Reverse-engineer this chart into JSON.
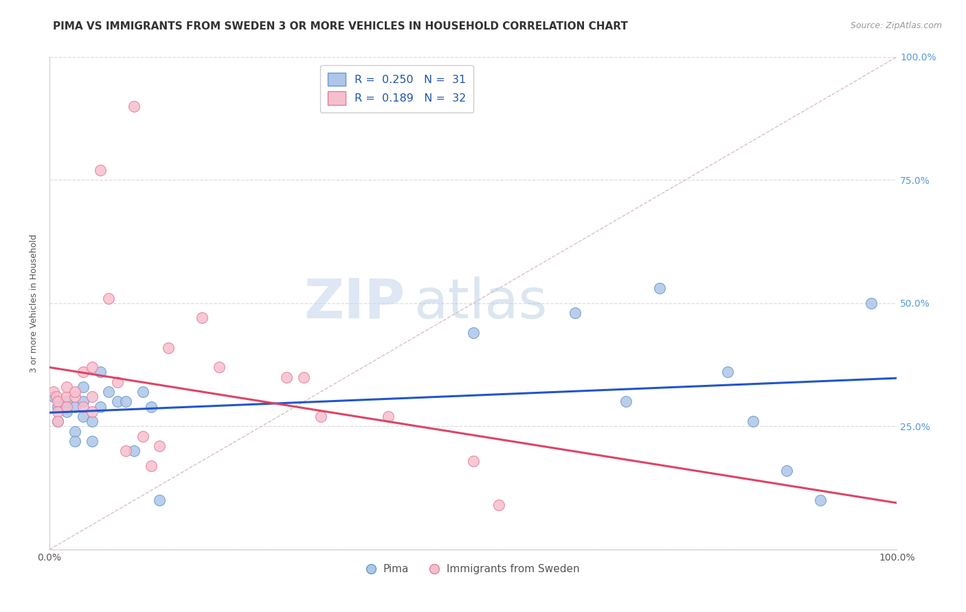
{
  "title": "PIMA VS IMMIGRANTS FROM SWEDEN 3 OR MORE VEHICLES IN HOUSEHOLD CORRELATION CHART",
  "source": "Source: ZipAtlas.com",
  "ylabel": "3 or more Vehicles in Household",
  "watermark_zip": "ZIP",
  "watermark_atlas": "atlas",
  "xlim": [
    0,
    1
  ],
  "ylim": [
    0,
    1
  ],
  "xticks": [
    0.0,
    0.25,
    0.5,
    0.75,
    1.0
  ],
  "yticks": [
    0.0,
    0.25,
    0.5,
    0.75,
    1.0
  ],
  "xtick_labels": [
    "0.0%",
    "",
    "",
    "",
    "100.0%"
  ],
  "right_ytick_labels": [
    "25.0%",
    "50.0%",
    "75.0%",
    "100.0%"
  ],
  "right_yticks": [
    0.25,
    0.5,
    0.75,
    1.0
  ],
  "blue_color": "#aec6e8",
  "blue_edge_color": "#6699cc",
  "pink_color": "#f5c0cd",
  "pink_edge_color": "#e8799a",
  "blue_line_color": "#2255cc",
  "pink_line_color": "#dd4466",
  "diag_line_color": "#d0b0b0",
  "legend_blue_label": "R =  0.250   N =  31",
  "legend_pink_label": "R =  0.189   N =  32",
  "legend_bottom_blue": "Pima",
  "legend_bottom_pink": "Immigrants from Sweden",
  "pima_x": [
    0.005,
    0.01,
    0.01,
    0.02,
    0.02,
    0.03,
    0.03,
    0.03,
    0.04,
    0.04,
    0.04,
    0.05,
    0.05,
    0.06,
    0.06,
    0.07,
    0.08,
    0.09,
    0.1,
    0.11,
    0.12,
    0.13,
    0.5,
    0.62,
    0.68,
    0.72,
    0.8,
    0.83,
    0.87,
    0.91,
    0.97
  ],
  "pima_y": [
    0.31,
    0.29,
    0.26,
    0.3,
    0.28,
    0.24,
    0.22,
    0.29,
    0.33,
    0.3,
    0.27,
    0.26,
    0.22,
    0.36,
    0.29,
    0.32,
    0.3,
    0.3,
    0.2,
    0.32,
    0.29,
    0.1,
    0.44,
    0.48,
    0.3,
    0.53,
    0.36,
    0.26,
    0.16,
    0.1,
    0.5
  ],
  "sweden_x": [
    0.005,
    0.008,
    0.01,
    0.01,
    0.01,
    0.02,
    0.02,
    0.02,
    0.03,
    0.03,
    0.04,
    0.04,
    0.05,
    0.05,
    0.05,
    0.06,
    0.07,
    0.08,
    0.09,
    0.1,
    0.11,
    0.12,
    0.13,
    0.14,
    0.18,
    0.2,
    0.28,
    0.3,
    0.32,
    0.4,
    0.5,
    0.53
  ],
  "sweden_y": [
    0.32,
    0.31,
    0.3,
    0.28,
    0.26,
    0.31,
    0.33,
    0.29,
    0.31,
    0.32,
    0.36,
    0.29,
    0.37,
    0.31,
    0.28,
    0.77,
    0.51,
    0.34,
    0.2,
    0.9,
    0.23,
    0.17,
    0.21,
    0.41,
    0.47,
    0.37,
    0.35,
    0.35,
    0.27,
    0.27,
    0.18,
    0.09
  ],
  "title_fontsize": 11,
  "axis_fontsize": 9,
  "tick_fontsize": 10,
  "marker_size": 130,
  "grid_color": "#dddddd",
  "legend_text_color": "#2255aa",
  "bottom_legend_color": "#555555"
}
